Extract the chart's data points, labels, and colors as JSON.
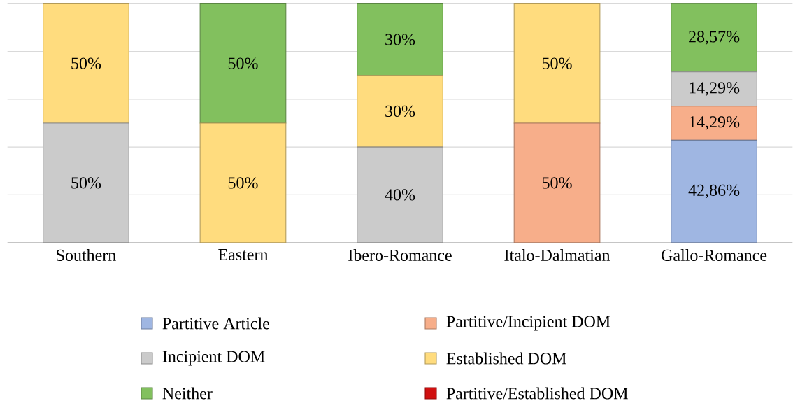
{
  "chart_data": {
    "type": "bar",
    "stacked": true,
    "categories": [
      "Southern",
      "Eastern",
      "Ibero-Romance",
      "Italo-Dalmatian",
      "Gallo-Romance"
    ],
    "series": [
      {
        "name": "Partitive Article",
        "color": "#9fb6e2",
        "values": [
          0,
          0,
          0,
          0,
          42.86
        ],
        "value_labels": [
          null,
          null,
          null,
          null,
          "42,86%"
        ]
      },
      {
        "name": "Partitive/Incipient DOM",
        "color": "#f7ae8a",
        "values": [
          0,
          0,
          0,
          50,
          14.29
        ],
        "value_labels": [
          null,
          null,
          null,
          "50%",
          "14,29%"
        ]
      },
      {
        "name": "Incipient DOM",
        "color": "#cbcbcb",
        "values": [
          50,
          0,
          40,
          0,
          14.29
        ],
        "value_labels": [
          "50%",
          null,
          "40%",
          null,
          "14,29%"
        ]
      },
      {
        "name": "Established DOM",
        "color": "#ffdc7e",
        "values": [
          50,
          50,
          30,
          50,
          0
        ],
        "value_labels": [
          "50%",
          "50%",
          "30%",
          "50%",
          null
        ]
      },
      {
        "name": "Neither",
        "color": "#82c05e",
        "values": [
          0,
          50,
          30,
          0,
          28.57
        ],
        "value_labels": [
          null,
          "50%",
          "30%",
          null,
          "28,57%"
        ]
      },
      {
        "name": "Partitive/Established DOM",
        "color": "#d01010",
        "values": [
          0,
          0,
          0,
          0,
          0
        ],
        "value_labels": [
          null,
          null,
          null,
          null,
          null
        ]
      }
    ],
    "ylim": [
      0,
      100
    ],
    "yticks": [
      {
        "value": 20,
        "label": null
      },
      {
        "value": 40,
        "label": null
      },
      {
        "value": 60,
        "label": null
      },
      {
        "value": 80,
        "label": null
      },
      {
        "value": 100,
        "label": null
      }
    ],
    "grid": "y",
    "tick_labels": "x",
    "legend": "bottom"
  }
}
